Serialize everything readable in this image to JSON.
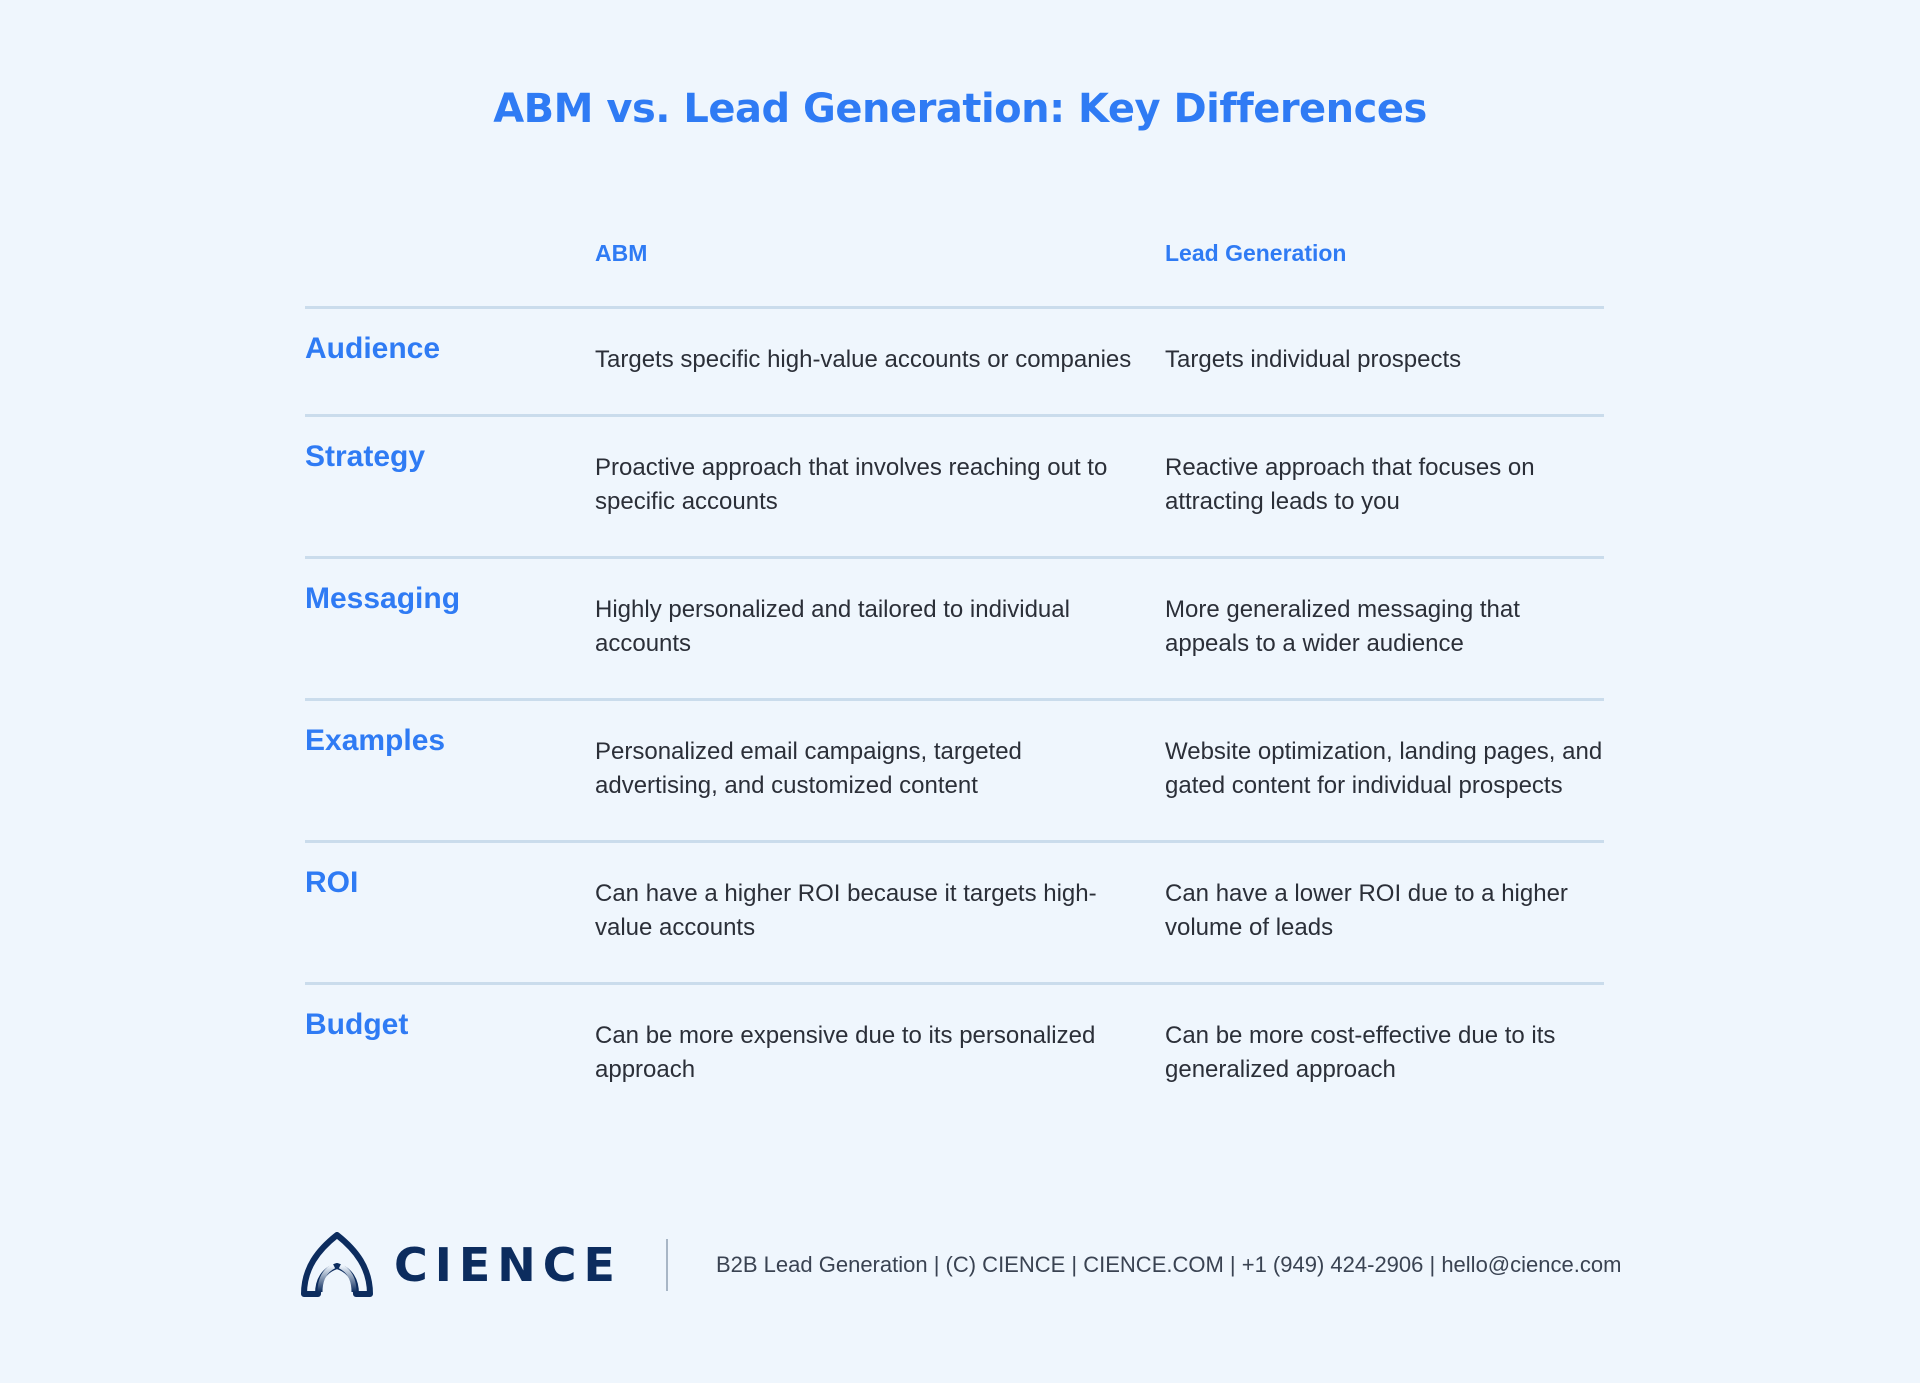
{
  "title": "ABM vs. Lead Generation: Key Differences",
  "columns": [
    "",
    "ABM",
    "Lead Generation"
  ],
  "rows": [
    {
      "label": "Audience",
      "abm": "Targets specific high-value accounts or companies",
      "lead": "Targets individual prospects"
    },
    {
      "label": "Strategy",
      "abm": "Proactive approach that involves reaching out to specific accounts",
      "lead": "Reactive approach that focuses on attracting leads to you"
    },
    {
      "label": "Messaging",
      "abm": "Highly personalized and tailored to individual accounts",
      "lead": "More generalized messaging that appeals to a wider audience"
    },
    {
      "label": "Examples",
      "abm": "Personalized email campaigns, targeted advertising, and customized content",
      "lead": "Website optimization, landing pages, and gated content for individual prospects"
    },
    {
      "label": "ROI",
      "abm": "Can have a higher ROI because it targets high-value accounts",
      "lead": "Can have a lower ROI due to a higher volume of leads"
    },
    {
      "label": "Budget",
      "abm": "Can be more expensive due to its personalized approach",
      "lead": "Can be more cost-effective due to its generalized approach"
    }
  ],
  "footer": {
    "logo_text": "CIENCE",
    "text": "B2B Lead Generation | (C) CIENCE | CIENCE.COM | +1 (949) 424-2906 | hello@cience.com"
  },
  "colors": {
    "accent": "#2f7bf4",
    "brand": "#0c2c5e",
    "background": "#eff6fd",
    "divider": "#cadcec"
  }
}
